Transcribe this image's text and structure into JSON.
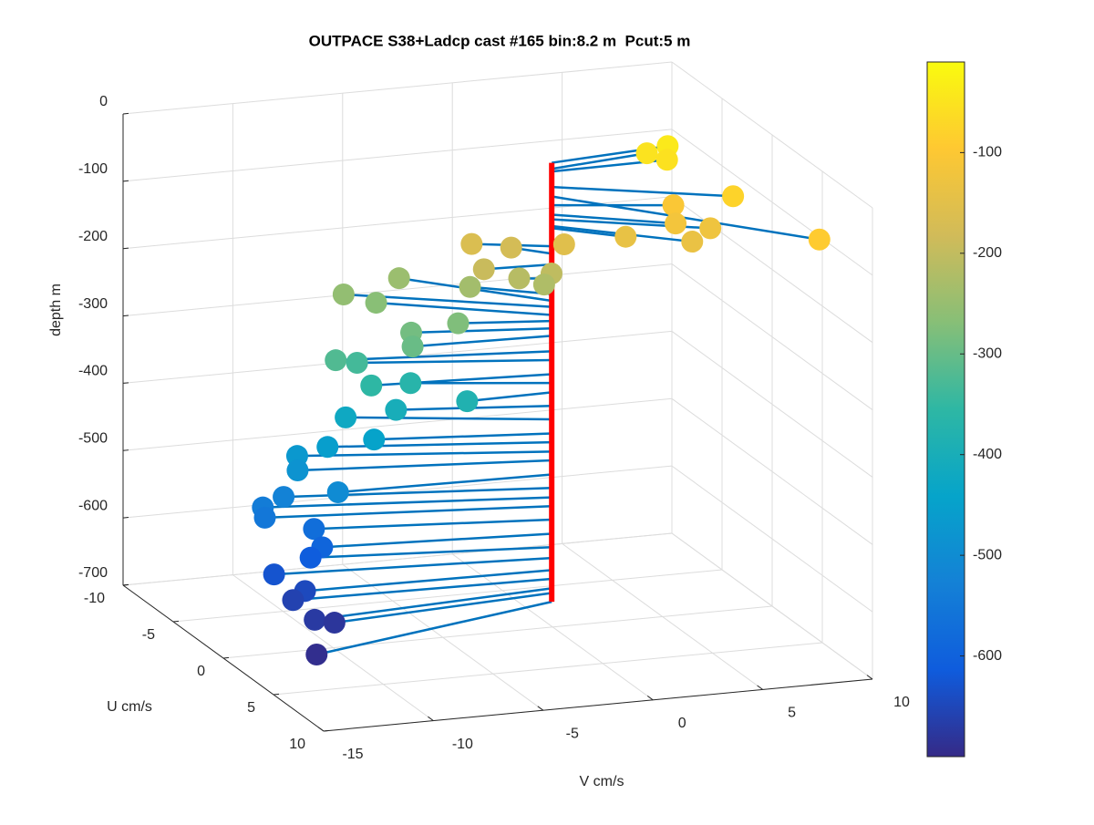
{
  "chart_data": {
    "type": "scatter3",
    "title": "OUTPACE S38+Ladcp cast #165 bin:8.2 m  Pcut:5 m",
    "xlabel": "V cm/s",
    "ylabel": "U cm/s",
    "zlabel": "depth m",
    "ulim": [
      -10,
      10
    ],
    "uticks": [
      -10,
      -5,
      0,
      5,
      10
    ],
    "vlim": [
      -15,
      10
    ],
    "vticks": [
      -15,
      -10,
      -5,
      0,
      5,
      10
    ],
    "zlim": [
      -700,
      0
    ],
    "zticks": [
      -700,
      -600,
      -500,
      -400,
      -300,
      -200,
      -100,
      0
    ],
    "grid": true,
    "colormap": "parula",
    "clim": [
      -700,
      -10
    ],
    "cticks": [
      -600,
      -500,
      -400,
      -300,
      -200,
      -100
    ],
    "stem_color": "#0072bd",
    "track": {
      "u": -2.5,
      "v": 1.1,
      "color": "#ff0000"
    },
    "points": {
      "u": [
        -3.2,
        -2.6,
        -3.3,
        0.7,
        5.8,
        -1.1,
        0.0,
        0.4,
        1.0,
        -0.6,
        -1.7,
        -3.7,
        -3.7,
        -2.7,
        -2.3,
        -2.9,
        -2.6,
        -4.3,
        -7.0,
        -6.4,
        -6.0,
        -3.3,
        -3.6,
        -2.8,
        -3.9,
        -4.4,
        -3.2,
        -4.1,
        -2.4,
        -3.8,
        -5.1,
        -3.8,
        -4.5,
        -4.9,
        -4.2,
        -2.8,
        -4.5,
        -4.6,
        -4.4,
        -4.1,
        -3.5,
        -4.0,
        -3.7,
        -2.8,
        -2.9,
        -1.4,
        -1.4,
        1.2
      ],
      "v": [
        6.7,
        6.4,
        5.8,
        7.9,
        9.5,
        6.0,
        5.6,
        7.0,
        5.9,
        3.6,
        1.3,
        -2.0,
        -0.2,
        -1.9,
        1.0,
        -0.2,
        0.8,
        -1.8,
        -3.8,
        -6.6,
        -5.3,
        -2.8,
        -4.8,
        -5.1,
        -8.1,
        -6.9,
        -6.8,
        -4.6,
        -2.8,
        -5.4,
        -7.1,
        -6.4,
        -8.2,
        -9.4,
        -9.7,
        -8.5,
        -10.2,
        -11.1,
        -11.1,
        -9.0,
        -8.9,
        -9.2,
        -11.0,
        -10.0,
        -10.5,
        -10.2,
        -9.3,
        -11.3
      ],
      "depth": [
        -41,
        -54,
        -50,
        -77,
        -91,
        -104,
        -118,
        -125,
        -135,
        -138,
        -154,
        -165,
        -176,
        -192,
        -203,
        -213,
        -222,
        -236,
        -246,
        -255,
        -267,
        -276,
        -287,
        -298,
        -321,
        -334,
        -355,
        -368,
        -382,
        -402,
        -422,
        -443,
        -456,
        -470,
        -483,
        -504,
        -524,
        -538,
        -551,
        -571,
        -592,
        -612,
        -628,
        -646,
        -659,
        -673,
        -680,
        -693
      ]
    }
  }
}
